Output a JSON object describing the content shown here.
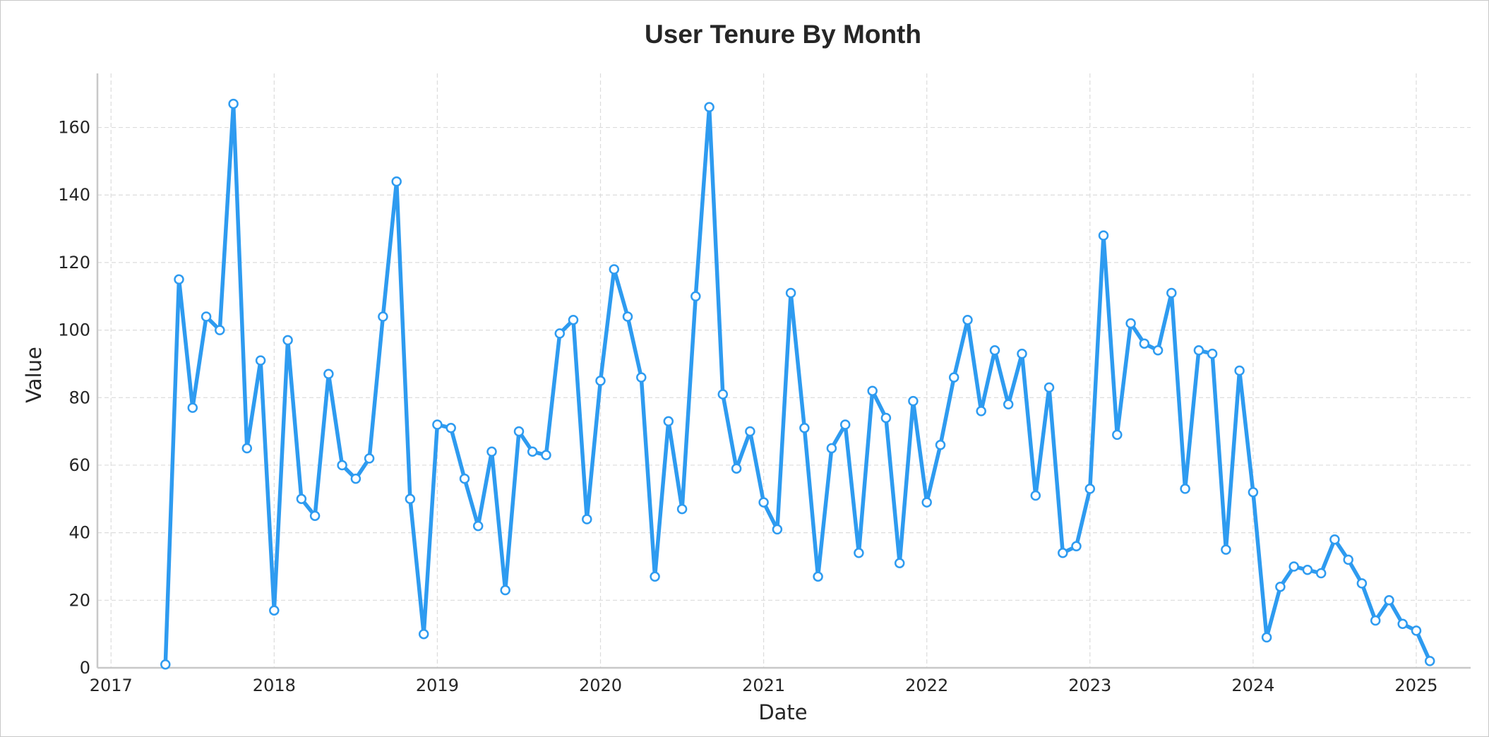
{
  "chart_data": {
    "type": "line",
    "title": "User Tenure By Month",
    "xlabel": "Date",
    "ylabel": "Value",
    "ylim": [
      0,
      176
    ],
    "xlim": [
      "2016-12-01",
      "2025-05-01"
    ],
    "grid": true,
    "x_ticks": [
      "2017",
      "2018",
      "2019",
      "2020",
      "2021",
      "2022",
      "2023",
      "2024",
      "2025"
    ],
    "y_ticks": [
      0,
      20,
      40,
      60,
      80,
      100,
      120,
      140,
      160
    ],
    "colors": {
      "series": "#2e9bf0",
      "axis": "#c8c8c8",
      "grid": "#dcdcdc"
    },
    "series": [
      {
        "x": [
          "2017-05",
          "2017-06",
          "2017-07",
          "2017-08",
          "2017-09",
          "2017-10",
          "2017-11",
          "2017-12",
          "2018-01",
          "2018-02",
          "2018-03",
          "2018-04",
          "2018-05",
          "2018-06",
          "2018-07",
          "2018-08",
          "2018-09",
          "2018-10",
          "2018-11",
          "2018-12",
          "2019-01",
          "2019-02",
          "2019-03",
          "2019-04",
          "2019-05",
          "2019-06",
          "2019-07",
          "2019-08",
          "2019-09",
          "2019-10",
          "2019-11",
          "2019-12",
          "2020-01",
          "2020-02",
          "2020-03",
          "2020-04",
          "2020-05",
          "2020-06",
          "2020-07",
          "2020-08",
          "2020-09",
          "2020-10",
          "2020-11",
          "2020-12",
          "2021-01",
          "2021-02",
          "2021-03",
          "2021-04",
          "2021-05",
          "2021-06",
          "2021-07",
          "2021-08",
          "2021-09",
          "2021-10",
          "2021-11",
          "2021-12",
          "2022-01",
          "2022-02",
          "2022-03",
          "2022-04",
          "2022-05",
          "2022-06",
          "2022-07",
          "2022-08",
          "2022-09",
          "2022-10",
          "2022-11",
          "2022-12",
          "2023-01",
          "2023-02",
          "2023-03",
          "2023-04",
          "2023-05",
          "2023-06",
          "2023-07",
          "2023-08",
          "2023-09",
          "2023-10",
          "2023-11",
          "2023-12",
          "2024-01",
          "2024-02",
          "2024-03",
          "2024-04",
          "2024-05",
          "2024-06",
          "2024-07",
          "2024-08",
          "2024-09",
          "2024-10",
          "2024-11",
          "2024-12",
          "2025-01",
          "2025-02"
        ],
        "values": [
          1,
          115,
          77,
          104,
          100,
          167,
          65,
          91,
          17,
          97,
          50,
          45,
          87,
          60,
          56,
          62,
          104,
          144,
          50,
          10,
          72,
          71,
          56,
          42,
          64,
          23,
          70,
          64,
          63,
          99,
          103,
          44,
          85,
          118,
          104,
          86,
          27,
          73,
          47,
          110,
          166,
          81,
          59,
          70,
          49,
          41,
          111,
          71,
          27,
          65,
          72,
          34,
          82,
          74,
          31,
          79,
          49,
          66,
          86,
          103,
          76,
          94,
          78,
          93,
          51,
          83,
          34,
          36,
          53,
          128,
          69,
          102,
          96,
          94,
          111,
          53,
          94,
          93,
          35,
          88,
          52,
          9,
          24,
          30,
          29,
          28,
          38,
          32,
          25,
          14,
          20,
          13,
          11,
          2
        ]
      }
    ]
  }
}
